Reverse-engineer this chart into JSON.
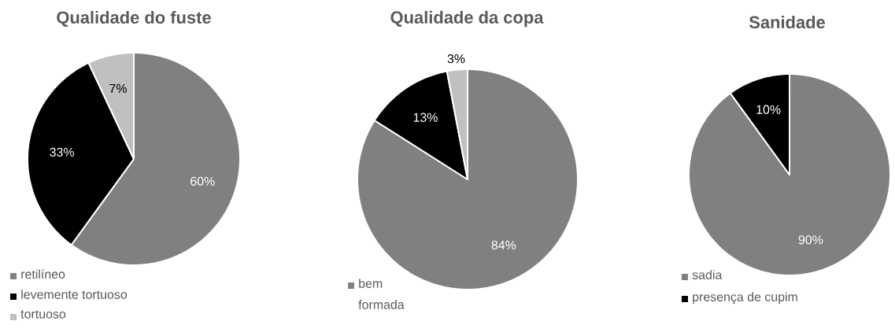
{
  "chart_data": [
    {
      "type": "pie",
      "title": "Qualidade do fuste",
      "categories": [
        "retilíneo",
        "levemente tortuoso",
        "tortuoso"
      ],
      "values": [
        60,
        33,
        7
      ],
      "colors": [
        "#808080",
        "#000000",
        "#c0c0c0"
      ],
      "value_labels": [
        "60%",
        "33%",
        "7%"
      ],
      "legend": "bottom left"
    },
    {
      "type": "pie",
      "title": "Qualidade da copa",
      "categories": [
        "bem formada",
        null,
        null
      ],
      "values": [
        84,
        13,
        3
      ],
      "colors": [
        "#808080",
        "#000000",
        "#c0c0c0"
      ],
      "value_labels": [
        "84%",
        "13%",
        "3%"
      ],
      "legend": "bottom left"
    },
    {
      "type": "pie",
      "title": "Sanidade",
      "categories": [
        "sadia",
        "presença de cupim"
      ],
      "values": [
        90,
        10
      ],
      "colors": [
        "#808080",
        "#000000"
      ],
      "value_labels": [
        "90%",
        "10%"
      ],
      "legend": "bottom left"
    }
  ]
}
